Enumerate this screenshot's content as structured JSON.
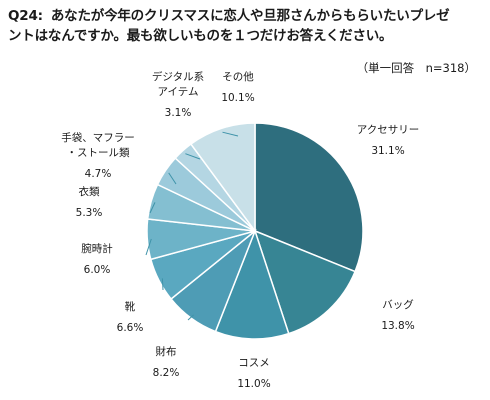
{
  "title": {
    "number": "Q24:",
    "line1": "あなたが今年のクリスマスに恋人や旦那さんからもらいたいプレゼ",
    "line2": "ントはなんですか。最も欲しいものを１つだけお答えください。"
  },
  "note": "（単一回答　n=318）",
  "chart_data": {
    "type": "pie",
    "start": "12 o'clock, clockwise",
    "categories": [
      "アクセサリー",
      "バッグ",
      "コスメ",
      "財布",
      "靴",
      "腕時計",
      "衣類",
      "手袋、マフラー・ストール類",
      "デジタル系アイテム",
      "その他"
    ],
    "values": [
      31.1,
      13.8,
      11.0,
      8.2,
      6.6,
      6.0,
      5.3,
      4.7,
      3.1,
      10.1
    ],
    "value_labels": [
      "31.1%",
      "13.8%",
      "11.0%",
      "8.2%",
      "6.6%",
      "6.0%",
      "5.3%",
      "4.7%",
      "3.1%",
      "10.1%"
    ],
    "label_lines": [
      [
        "アクセサリー"
      ],
      [
        "バッグ"
      ],
      [
        "コスメ"
      ],
      [
        "財布"
      ],
      [
        "靴"
      ],
      [
        "腕時計"
      ],
      [
        "衣類"
      ],
      [
        "手袋、マフラー",
        "・ストール類"
      ],
      [
        "デジタル系",
        "アイテム"
      ],
      [
        "その他"
      ]
    ],
    "colors": [
      "#2e6e7e",
      "#378594",
      "#3f93a9",
      "#4e9cb5",
      "#5aa8c0",
      "#6db3c8",
      "#84bfd1",
      "#9ccadb",
      "#b4d6e3",
      "#c8e0e8"
    ],
    "slice_border_color": "#ffffff"
  }
}
